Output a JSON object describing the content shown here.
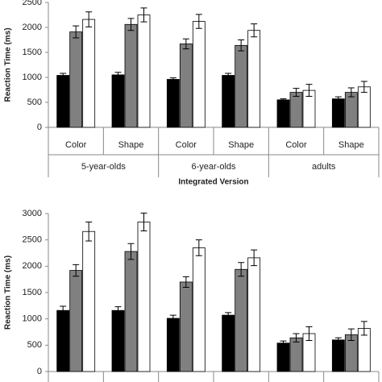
{
  "chart_data": [
    {
      "type": "bar",
      "y_label": "Reaction Time (ms)",
      "x_label": "Integrated Version",
      "categories": [
        "Color",
        "Shape",
        "Color",
        "Shape",
        "Color",
        "Shape"
      ],
      "groups": [
        "5-year-olds",
        "6-year-olds",
        "adults"
      ],
      "series": [
        {
          "color": "#000000",
          "values": [
            1040,
            1050,
            960,
            1040,
            550,
            570
          ],
          "errors": [
            40,
            50,
            30,
            40,
            20,
            40
          ]
        },
        {
          "color": "#808080",
          "values": [
            1910,
            2060,
            1670,
            1640,
            700,
            700
          ],
          "errors": [
            120,
            120,
            100,
            110,
            80,
            90
          ]
        },
        {
          "color": "#ffffff",
          "values": [
            2160,
            2250,
            2120,
            1940,
            740,
            810
          ],
          "errors": [
            150,
            140,
            140,
            130,
            120,
            110
          ]
        }
      ],
      "ylim": [
        0,
        2500
      ],
      "yticks": [
        0,
        500,
        1000,
        1500,
        2000,
        2500
      ]
    },
    {
      "type": "bar",
      "y_label": "Reaction Time (ms)",
      "categories": [
        null,
        null,
        null,
        null,
        null,
        null
      ],
      "series": [
        {
          "color": "#000000",
          "values": [
            1160,
            1160,
            1010,
            1070,
            540,
            600
          ],
          "errors": [
            80,
            70,
            60,
            50,
            40,
            40
          ]
        },
        {
          "color": "#808080",
          "values": [
            1920,
            2280,
            1700,
            1940,
            640,
            700
          ],
          "errors": [
            110,
            150,
            100,
            130,
            80,
            110
          ]
        },
        {
          "color": "#ffffff",
          "values": [
            2660,
            2840,
            2350,
            2160,
            720,
            820
          ],
          "errors": [
            180,
            170,
            150,
            150,
            130,
            130
          ]
        }
      ],
      "ylim": [
        0,
        3000
      ],
      "yticks": [
        0,
        500,
        1000,
        1500,
        2000,
        2500,
        3000
      ]
    }
  ]
}
